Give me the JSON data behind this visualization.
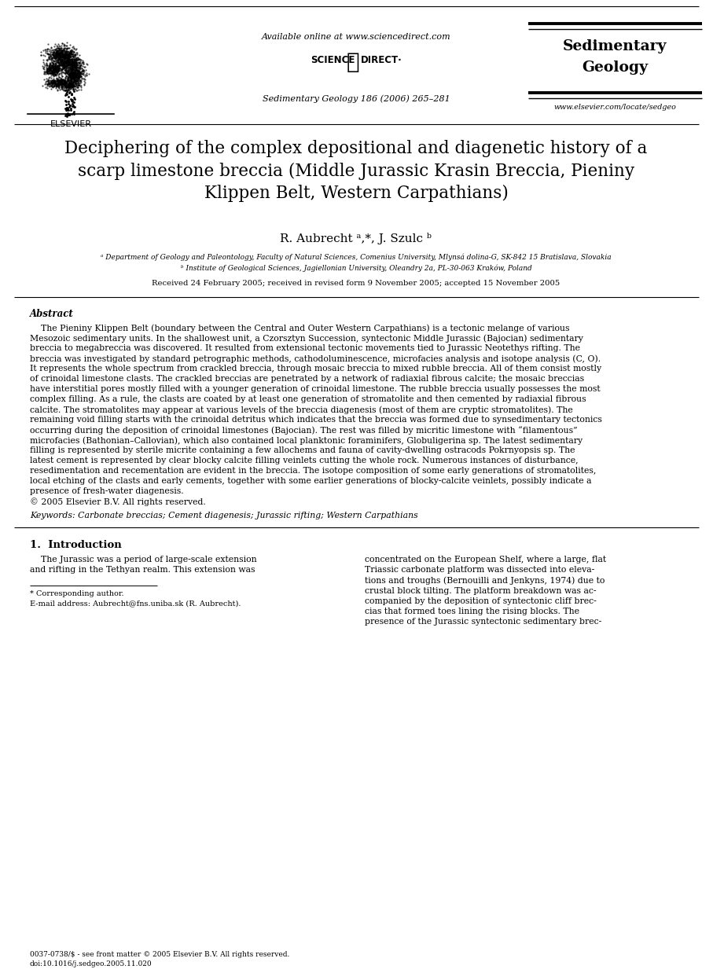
{
  "bg_color": "#ffffff",
  "header": {
    "available_online": "Available online at www.sciencedirect.com",
    "journal_ref": "Sedimentary Geology 186 (2006) 265–281",
    "journal_name_line1": "Sedimentary",
    "journal_name_line2": "Geology",
    "website": "www.elsevier.com/locate/sedgeo"
  },
  "title": "Deciphering of the complex depositional and diagenetic history of a\nscarp limestone breccia (Middle Jurassic Krasin Breccia, Pieniny\nKlippen Belt, Western Carpathians)",
  "authors": "R. Aubrecht ᵃ,*, J. Szulc ᵇ",
  "affil_a": "ᵃ Department of Geology and Paleontology, Faculty of Natural Sciences, Comenius University, Mlynsá dolina-G, SK-842 15 Bratislava, Slovakia",
  "affil_b": "ᵇ Institute of Geological Sciences, Jagiellonian University, Oleandry 2a, PL-30-063 Kraków, Poland",
  "received": "Received 24 February 2005; received in revised form 9 November 2005; accepted 15 November 2005",
  "abstract_title": "Abstract",
  "abstract_lines": [
    "    The Pieniny Klippen Belt (boundary between the Central and Outer Western Carpathians) is a tectonic melange of various",
    "Mesozoic sedimentary units. In the shallowest unit, a Czorsztyn Succession, syntectonic Middle Jurassic (Bajocian) sedimentary",
    "breccia to megabreccia was discovered. It resulted from extensional tectonic movements tied to Jurassic Neotethys rifting. The",
    "breccia was investigated by standard petrographic methods, cathodoluminescence, microfacies analysis and isotope analysis (C, O).",
    "It represents the whole spectrum from crackled breccia, through mosaic breccia to mixed rubble breccia. All of them consist mostly",
    "of crinoidal limestone clasts. The crackled breccias are penetrated by a network of radiaxial fibrous calcite; the mosaic breccias",
    "have interstitial pores mostly filled with a younger generation of crinoidal limestone. The rubble breccia usually possesses the most",
    "complex filling. As a rule, the clasts are coated by at least one generation of stromatolite and then cemented by radiaxial fibrous",
    "calcite. The stromatolites may appear at various levels of the breccia diagenesis (most of them are cryptic stromatolites). The",
    "remaining void filling starts with the crinoidal detritus which indicates that the breccia was formed due to synsedimentary tectonics",
    "occurring during the deposition of crinoidal limestones (Bajocian). The rest was filled by micritic limestone with “filamentous”",
    "microfacies (Bathonian–Callovian), which also contained local planktonic foraminifers, Globuligerina sp. The latest sedimentary",
    "filling is represented by sterile micrite containing a few allochems and fauna of cavity-dwelling ostracods Pokrnyopsis sp. The",
    "latest cement is represented by clear blocky calcite filling veinlets cutting the whole rock. Numerous instances of disturbance,",
    "resedimentation and recementation are evident in the breccia. The isotope composition of some early generations of stromatolites,",
    "local etching of the clasts and early cements, together with some earlier generations of blocky-calcite veinlets, possibly indicate a",
    "presence of fresh-water diagenesis.",
    "© 2005 Elsevier B.V. All rights reserved."
  ],
  "keywords": "Keywords: Carbonate breccias; Cement diagenesis; Jurassic rifting; Western Carpathians",
  "section1_title": "1.  Introduction",
  "col1_lines": [
    "    The Jurassic was a period of large-scale extension",
    "and rifting in the Tethyan realm. This extension was"
  ],
  "col2_lines": [
    "concentrated on the European Shelf, where a large, flat",
    "Triassic carbonate platform was dissected into eleva-",
    "tions and troughs (Bernouilli and Jenkyns, 1974) due to",
    "crustal block tilting. The platform breakdown was ac-",
    "companied by the deposition of syntectonic cliff brec-",
    "cias that formed toes lining the rising blocks. The",
    "presence of the Jurassic syntectonic sedimentary brec-"
  ],
  "footnote_corresponding": "* Corresponding author.",
  "footnote_email": "E-mail address: Aubrecht@fns.uniba.sk (R. Aubrecht).",
  "footer_issn": "0037-0738/$ - see front matter © 2005 Elsevier B.V. All rights reserved.",
  "footer_doi": "doi:10.1016/j.sedgeo.2005.11.020"
}
